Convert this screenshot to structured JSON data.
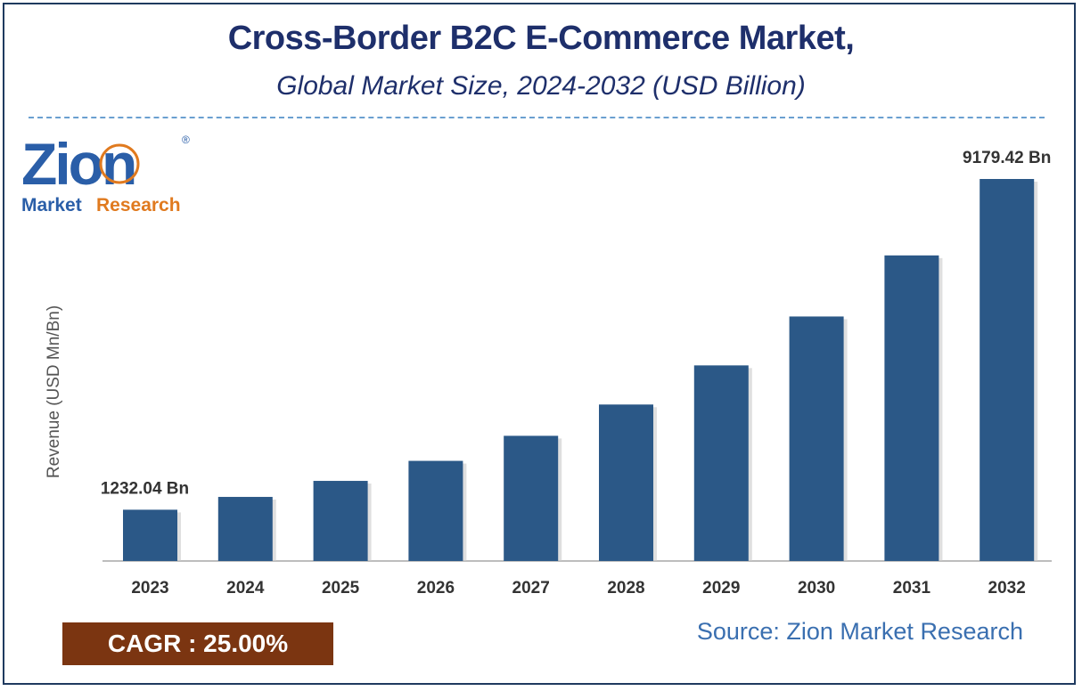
{
  "title": "Cross-Border B2C E-Commerce Market,",
  "subtitle": "Global Market Size, 2024-2032 (USD Billion)",
  "logo": {
    "word": "Zion",
    "tagline_left": "Market",
    "tagline_right": "Research",
    "mark": "®",
    "color_primary": "#2a5ea8",
    "color_accent": "#e07a1f"
  },
  "cagr": {
    "label": "CAGR : 25.00%"
  },
  "source": "Source: Zion Market Research",
  "colors": {
    "bar": "#2b5887",
    "title": "#1e2f6b",
    "cagr_bg": "#7b3511",
    "source": "#3a6fb0"
  },
  "chart_data": {
    "type": "bar",
    "categories": [
      "2023",
      "2024",
      "2025",
      "2026",
      "2027",
      "2028",
      "2029",
      "2030",
      "2031",
      "2032"
    ],
    "values": [
      1232.04,
      1540,
      1925,
      2406,
      3008,
      3760,
      4700,
      5875,
      7343,
      9179.42
    ],
    "data_labels": [
      {
        "index": 0,
        "text": "1232.04 Bn"
      },
      {
        "index": 9,
        "text": "9179.42 Bn"
      }
    ],
    "ylabel": "Revenue (USD Mn/Bn)",
    "xlabel": "",
    "ylim": [
      0,
      9179.42
    ],
    "grid": false,
    "legend": "none"
  }
}
